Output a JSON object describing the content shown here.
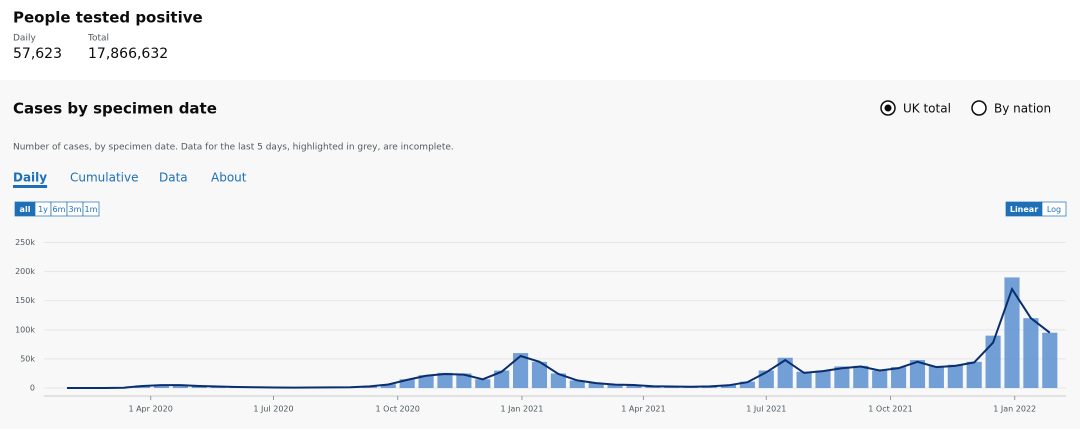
{
  "header": {
    "title": "People tested positive",
    "daily_label": "Daily",
    "daily_value": "57,623",
    "total_label": "Total",
    "total_value": "17,866,632"
  },
  "card": {
    "title": "Cases by specimen date",
    "options": [
      "UK total",
      "By nation"
    ],
    "description": "Number of cases, by specimen date. Data for the last 5 days, highlighted in grey, are incomplete.",
    "tabs": [
      "Daily",
      "Cumulative",
      "Data",
      "About"
    ],
    "ranges": [
      "all",
      "1y",
      "6m",
      "3m",
      "1m"
    ],
    "scales": [
      "Linear",
      "Log"
    ]
  },
  "chart_data": {
    "type": "bar",
    "color": "#5a8fd0",
    "line_color": "#0b2e6e",
    "x": [
      "2020-01-30",
      "2020-02-13",
      "2020-02-27",
      "2020-03-12",
      "2020-03-26",
      "2020-04-09",
      "2020-04-23",
      "2020-05-07",
      "2020-05-21",
      "2020-06-04",
      "2020-06-18",
      "2020-07-02",
      "2020-07-16",
      "2020-07-30",
      "2020-08-13",
      "2020-08-27",
      "2020-09-10",
      "2020-09-24",
      "2020-10-08",
      "2020-10-22",
      "2020-11-05",
      "2020-11-19",
      "2020-12-03",
      "2020-12-17",
      "2020-12-31",
      "2021-01-14",
      "2021-01-28",
      "2021-02-11",
      "2021-02-25",
      "2021-03-11",
      "2021-03-25",
      "2021-04-08",
      "2021-04-22",
      "2021-05-06",
      "2021-05-20",
      "2021-06-03",
      "2021-06-17",
      "2021-07-01",
      "2021-07-15",
      "2021-07-29",
      "2021-08-12",
      "2021-08-26",
      "2021-09-09",
      "2021-09-23",
      "2021-10-07",
      "2021-10-21",
      "2021-11-04",
      "2021-11-18",
      "2021-12-02",
      "2021-12-16",
      "2021-12-30",
      "2022-01-13",
      "2022-01-27"
    ],
    "values": [
      0,
      0,
      20,
      1000,
      4500,
      5500,
      5000,
      3500,
      2500,
      1800,
      1200,
      900,
      700,
      900,
      1100,
      1500,
      3500,
      6500,
      15000,
      22000,
      26000,
      25000,
      15000,
      30000,
      60000,
      45000,
      25000,
      13000,
      8500,
      6000,
      5500,
      3000,
      2500,
      2300,
      2800,
      5000,
      11000,
      30000,
      52000,
      28000,
      30000,
      37000,
      38000,
      30000,
      36000,
      48000,
      38000,
      40000,
      45000,
      90000,
      190000,
      120000,
      95000
    ],
    "rolling_average": [
      0,
      0,
      10,
      600,
      3500,
      5000,
      5000,
      3500,
      2500,
      1800,
      1200,
      900,
      700,
      850,
      1000,
      1300,
      2800,
      6000,
      14000,
      21000,
      24000,
      23000,
      15000,
      28000,
      55000,
      45000,
      24000,
      13000,
      8500,
      5800,
      5200,
      3000,
      2500,
      2300,
      2700,
      4600,
      10000,
      27000,
      48000,
      26000,
      29000,
      34000,
      37000,
      30000,
      34000,
      45000,
      36000,
      38000,
      44000,
      78000,
      170000,
      120000,
      95000
    ],
    "xlim": [
      "2020-01-13",
      "2022-02-08"
    ],
    "xticks": [
      {
        "value": "2020-04-01",
        "label": "1 Apr 2020"
      },
      {
        "value": "2020-07-01",
        "label": "1 Jul 2020"
      },
      {
        "value": "2020-10-01",
        "label": "1 Oct 2020"
      },
      {
        "value": "2021-01-01",
        "label": "1 Jan 2021"
      },
      {
        "value": "2021-04-01",
        "label": "1 Apr 2021"
      },
      {
        "value": "2021-07-01",
        "label": "1 Jul 2021"
      },
      {
        "value": "2021-10-01",
        "label": "1 Oct 2021"
      },
      {
        "value": "2022-01-01",
        "label": "1 Jan 2022"
      }
    ],
    "ylim": [
      0,
      275000
    ],
    "yticks": [
      0,
      {
        "value": 50000,
        "label": "50k"
      },
      {
        "value": 100000,
        "label": "100k"
      },
      {
        "value": 150000,
        "label": "150k"
      },
      {
        "value": 200000,
        "label": "200k"
      },
      {
        "value": 250000,
        "label": "250k"
      }
    ],
    "grid": true
  }
}
